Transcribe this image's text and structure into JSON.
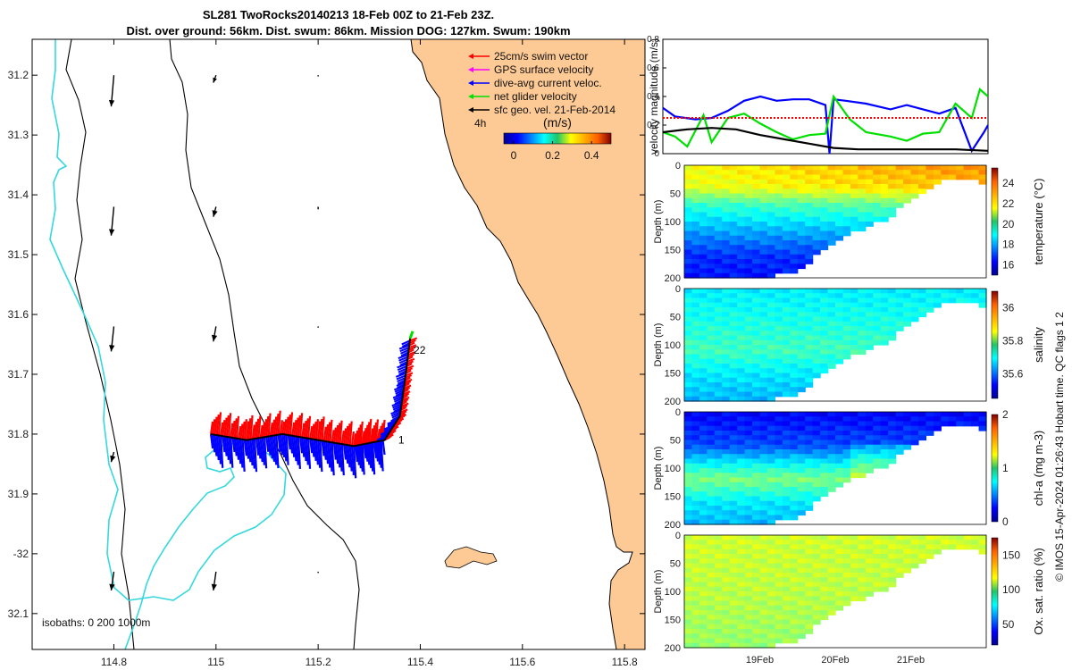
{
  "title_line1": "SL281 TwoRocks20140213 18-Feb 00Z to 21-Feb 23Z.",
  "title_line2": "Dist. over ground: 56km. Dist. swum: 86km. Mission DOG: 127km. Swum: 190km",
  "colors": {
    "land": "#fdc995",
    "isobath_0": "#000000",
    "isobath_200": "#000000",
    "isobath_1000": "#35d8dc",
    "swim_vector": "#ff0000",
    "gps_surface": "#ff00ff",
    "dive_avg": "#0000ff",
    "net_glider": "#00e000",
    "sfc_geo": "#000000"
  },
  "chart_data": [
    {
      "type": "map",
      "name": "glider_track_map",
      "xlim": [
        114.64,
        115.84
      ],
      "ylim": [
        -32.16,
        -31.14
      ],
      "xticks": [
        114.8,
        115,
        115.2,
        115.4,
        115.6,
        115.8
      ],
      "xtick_labels": [
        "114.8",
        "115",
        "115.2",
        "115.4",
        "115.6",
        "115.8"
      ],
      "yticks": [
        -31.2,
        -31.3,
        -31.4,
        -31.5,
        -31.6,
        -31.7,
        -31.8,
        -31.9,
        -32,
        -32.1
      ],
      "ytick_labels": [
        "31.2",
        "31.3",
        "31.4",
        "31.5",
        "31.6",
        "31.7",
        "31.8",
        "31.9",
        "-32",
        "32.1"
      ],
      "isobaths_label": "isobaths: 0   200  1000m",
      "legend": [
        {
          "label": "25cm/s swim vector",
          "color": "#ff0000"
        },
        {
          "label": "GPS surface velocity",
          "color": "#ff00ff"
        },
        {
          "label": "dive-avg current veloc.",
          "color": "#0000ff"
        },
        {
          "label": "net glider velocity",
          "color": "#00e000"
        },
        {
          "label": "sfc geo. vel. 21-Feb-2014",
          "color": "#000000"
        }
      ],
      "track_label_4h": "4h",
      "colorbar": {
        "label": "(m/s)",
        "ticks": [
          0,
          0.2,
          0.4
        ],
        "tick_labels": [
          "0",
          "0.2",
          "0.4"
        ],
        "range": [
          -0.05,
          0.5
        ]
      },
      "track_labels": [
        {
          "text": "22",
          "lon": 115.38,
          "lat": -31.66
        },
        {
          "text": "1",
          "lon": 115.35,
          "lat": -31.81
        }
      ],
      "track": [
        [
          114.99,
          -31.8
        ],
        [
          115.06,
          -31.81
        ],
        [
          115.13,
          -31.8
        ],
        [
          115.2,
          -31.81
        ],
        [
          115.27,
          -31.82
        ],
        [
          115.33,
          -31.81
        ],
        [
          115.36,
          -31.77
        ],
        [
          115.37,
          -31.71
        ],
        [
          115.38,
          -31.64
        ]
      ],
      "sfc_geo_arrows": [
        {
          "lon": 114.8,
          "lat": -31.2,
          "u": 0.0,
          "v": -0.25
        },
        {
          "lon": 115.0,
          "lat": -31.2,
          "u": 0.0,
          "v": -0.06
        },
        {
          "lon": 115.2,
          "lat": -31.2,
          "u": 0.0,
          "v": -0.01
        },
        {
          "lon": 114.8,
          "lat": -31.42,
          "u": 0.0,
          "v": -0.23
        },
        {
          "lon": 115.0,
          "lat": -31.42,
          "u": 0.0,
          "v": -0.08
        },
        {
          "lon": 115.2,
          "lat": -31.42,
          "u": 0.0,
          "v": -0.02
        },
        {
          "lon": 114.8,
          "lat": -31.62,
          "u": 0.0,
          "v": -0.2
        },
        {
          "lon": 115.0,
          "lat": -31.62,
          "u": 0.0,
          "v": -0.12
        },
        {
          "lon": 115.2,
          "lat": -31.62,
          "u": 0.0,
          "v": -0.01
        },
        {
          "lon": 114.8,
          "lat": -31.83,
          "u": 0.0,
          "v": -0.08
        },
        {
          "lon": 115.0,
          "lat": -31.83,
          "u": 0.0,
          "v": -0.02
        },
        {
          "lon": 114.8,
          "lat": -32.03,
          "u": 0.0,
          "v": -0.15
        },
        {
          "lon": 115.0,
          "lat": -32.03,
          "u": 0.0,
          "v": -0.15
        },
        {
          "lon": 115.2,
          "lat": -32.03,
          "u": 0.0,
          "v": -0.01
        }
      ]
    },
    {
      "type": "line",
      "name": "velocity_magnitude",
      "ylabel": "velocity magnitude (m/s)",
      "ylim": [
        0,
        0.8
      ],
      "yticks": [
        0,
        0.2,
        0.4,
        0.6,
        0.8
      ],
      "ytick_labels": [
        "0",
        "0.2",
        "0.4",
        "0.6",
        "0.8"
      ],
      "xlim": [
        0,
        4
      ],
      "series": [
        {
          "name": "dive-avg current veloc.",
          "color": "#0000ff",
          "x": [
            0,
            0.15,
            0.4,
            0.6,
            0.8,
            1.0,
            1.2,
            1.4,
            1.6,
            1.8,
            2.0,
            2.05,
            2.1,
            2.25,
            2.5,
            2.8,
            3.0,
            3.2,
            3.4,
            3.6,
            3.8,
            3.95,
            4.0
          ],
          "y": [
            0.32,
            0.26,
            0.24,
            0.25,
            0.3,
            0.37,
            0.4,
            0.37,
            0.38,
            0.38,
            0.34,
            0.0,
            0.38,
            0.37,
            0.35,
            0.31,
            0.34,
            0.31,
            0.28,
            0.32,
            0.02,
            0.15,
            0.2
          ]
        },
        {
          "name": "net glider velocity",
          "color": "#00e000",
          "x": [
            0,
            0.15,
            0.3,
            0.5,
            0.6,
            0.8,
            1.0,
            1.2,
            1.4,
            1.6,
            1.8,
            2.0,
            2.1,
            2.3,
            2.5,
            2.8,
            3.0,
            3.2,
            3.4,
            3.6,
            3.8,
            3.9,
            4.0
          ],
          "y": [
            0.15,
            0.12,
            0.05,
            0.27,
            0.08,
            0.25,
            0.28,
            0.21,
            0.15,
            0.1,
            0.13,
            0.14,
            0.4,
            0.24,
            0.15,
            0.12,
            0.09,
            0.14,
            0.15,
            0.35,
            0.25,
            0.45,
            0.4
          ]
        },
        {
          "name": "sfc geo. vel.",
          "color": "#000000",
          "x": [
            0,
            0.3,
            0.6,
            0.9,
            1.2,
            1.5,
            1.8,
            2.1,
            2.4,
            2.7,
            3.0,
            3.3,
            3.6,
            4.0
          ],
          "y": [
            0.15,
            0.17,
            0.18,
            0.17,
            0.13,
            0.1,
            0.07,
            0.04,
            0.03,
            0.03,
            0.03,
            0.03,
            0.03,
            0.02
          ]
        },
        {
          "name": "25cm/s swim vector",
          "color": "#ff0000",
          "style": "dotted",
          "x": [
            0,
            4
          ],
          "y": [
            0.25,
            0.25
          ]
        }
      ]
    },
    {
      "type": "heatmap",
      "name": "temperature",
      "ylabel": "Depth (m)",
      "colorbar_label": "temperature (°C)",
      "ylim": [
        200,
        0
      ],
      "yticks": [
        0,
        50,
        100,
        150,
        200
      ],
      "colorbar_ticks": [
        16,
        18,
        20,
        22,
        24
      ],
      "colorbar_range": [
        15,
        25.5
      ],
      "bottom_depth_profile": [
        200,
        200,
        200,
        200,
        195,
        185,
        150,
        125,
        110,
        90,
        55,
        30,
        25,
        30
      ],
      "layers": [
        {
          "depth": 0,
          "value": 24
        },
        {
          "depth": 40,
          "value": 22.5
        },
        {
          "depth": 70,
          "value": 19.8
        },
        {
          "depth": 120,
          "value": 18.5
        },
        {
          "depth": 170,
          "value": 16.5
        }
      ]
    },
    {
      "type": "heatmap",
      "name": "salinity",
      "ylabel": "Depth (m)",
      "colorbar_label": "salinity",
      "ylim": [
        200,
        0
      ],
      "yticks": [
        0,
        50,
        100,
        150,
        200
      ],
      "colorbar_ticks": [
        35.6,
        35.8,
        36
      ],
      "colorbar_range": [
        35.45,
        36.1
      ],
      "bottom_depth_profile": [
        200,
        200,
        200,
        200,
        195,
        185,
        150,
        125,
        110,
        90,
        55,
        30,
        25,
        30
      ],
      "layers": [
        {
          "depth": 0,
          "value": 35.72
        },
        {
          "depth": 60,
          "value": 35.76
        },
        {
          "depth": 120,
          "value": 35.85
        },
        {
          "depth": 180,
          "value": 35.7
        }
      ]
    },
    {
      "type": "heatmap",
      "name": "chl-a",
      "ylabel": "Depth (m)",
      "colorbar_label": "chl-a (mg m-3)",
      "ylim": [
        200,
        0
      ],
      "yticks": [
        0,
        50,
        100,
        150,
        200
      ],
      "colorbar_ticks": [
        0,
        1,
        2
      ],
      "colorbar_range": [
        0,
        2
      ],
      "bottom_depth_profile": [
        200,
        200,
        200,
        200,
        195,
        185,
        150,
        125,
        110,
        90,
        55,
        30,
        25,
        30
      ],
      "layers": [
        {
          "depth": 0,
          "value": 0.1
        },
        {
          "depth": 60,
          "value": 0.3
        },
        {
          "depth": 90,
          "value": 0.75
        },
        {
          "depth": 120,
          "value": 0.6
        },
        {
          "depth": 180,
          "value": 0.4
        }
      ]
    },
    {
      "type": "heatmap",
      "name": "oxygen_saturation",
      "ylabel": "Depth (m)",
      "colorbar_label": "Ox. sat. ratio (%)",
      "ylim": [
        200,
        0
      ],
      "yticks": [
        0,
        50,
        100,
        150,
        200
      ],
      "colorbar_ticks": [
        50,
        100,
        150
      ],
      "colorbar_range": [
        20,
        175
      ],
      "xticks": [
        1,
        2,
        3
      ],
      "xtick_labels": [
        "19Feb",
        "20Feb",
        "21Feb"
      ],
      "bottom_depth_profile": [
        200,
        200,
        200,
        200,
        195,
        185,
        150,
        125,
        110,
        90,
        55,
        30,
        25,
        30
      ],
      "layers": [
        {
          "depth": 0,
          "value": 112
        },
        {
          "depth": 80,
          "value": 108
        },
        {
          "depth": 150,
          "value": 100
        },
        {
          "depth": 200,
          "value": 96
        }
      ]
    }
  ],
  "side_note": "© IMOS 15-Apr-2024 01:26:43 Hobart time. QC flags 1  2"
}
